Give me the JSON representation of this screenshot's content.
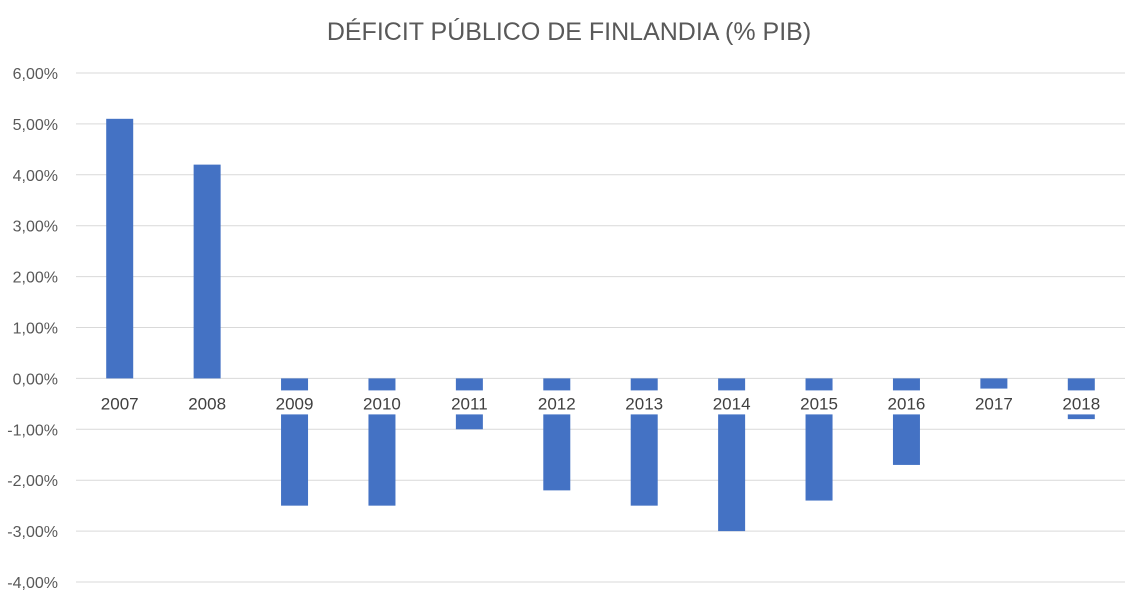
{
  "chart_data": {
    "type": "bar",
    "title": "DÉFICIT PÚBLICO DE FINLANDIA (% PIB)",
    "xlabel": "",
    "ylabel": "",
    "categories": [
      "2007",
      "2008",
      "2009",
      "2010",
      "2011",
      "2012",
      "2013",
      "2014",
      "2015",
      "2016",
      "2017",
      "2018"
    ],
    "values": [
      5.1,
      4.2,
      -2.5,
      -2.5,
      -1.0,
      -2.2,
      -2.5,
      -3.0,
      -2.4,
      -1.7,
      -0.2,
      -0.8
    ],
    "ylim": [
      -4,
      6
    ],
    "yticks": [
      "6,00%",
      "5,00%",
      "4,00%",
      "3,00%",
      "2,00%",
      "1,00%",
      "0,00%",
      "-1,00%",
      "-2,00%",
      "-3,00%",
      "-4,00%"
    ],
    "grid": true,
    "legend": "none",
    "colors": {
      "bar": "#4472c4",
      "grid": "#d9d9d9",
      "text": "#595959"
    }
  }
}
